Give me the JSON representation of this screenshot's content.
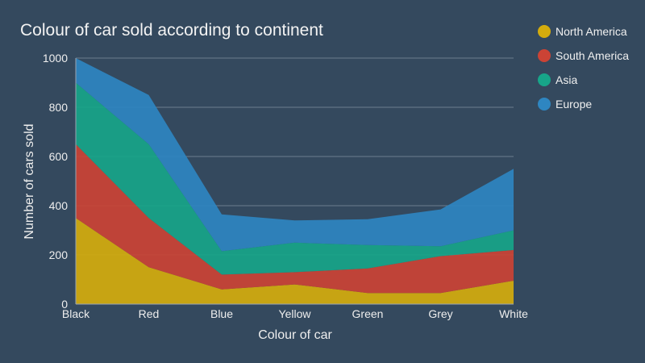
{
  "chart_data": {
    "type": "area",
    "stacked": true,
    "title": "Colour of car sold according to continent",
    "xlabel": "Colour of car",
    "ylabel": "Number of cars sold",
    "categories": [
      "Black",
      "Red",
      "Blue",
      "Yellow",
      "Green",
      "Grey",
      "White"
    ],
    "ylim": [
      0,
      1000
    ],
    "yticks": [
      0,
      200,
      400,
      600,
      800,
      1000
    ],
    "grid": true,
    "legend_position": "top-right",
    "series": [
      {
        "name": "North America",
        "color": "#d4ac0d",
        "values": [
          350,
          150,
          60,
          80,
          45,
          45,
          95
        ]
      },
      {
        "name": "South America",
        "color": "#cb4335",
        "values": [
          300,
          200,
          60,
          50,
          100,
          150,
          125
        ]
      },
      {
        "name": "Asia",
        "color": "#17a589",
        "values": [
          250,
          300,
          95,
          120,
          95,
          40,
          80
        ]
      },
      {
        "name": "Europe",
        "color": "#2e86c1",
        "values": [
          100,
          200,
          150,
          90,
          105,
          150,
          250
        ]
      }
    ]
  }
}
